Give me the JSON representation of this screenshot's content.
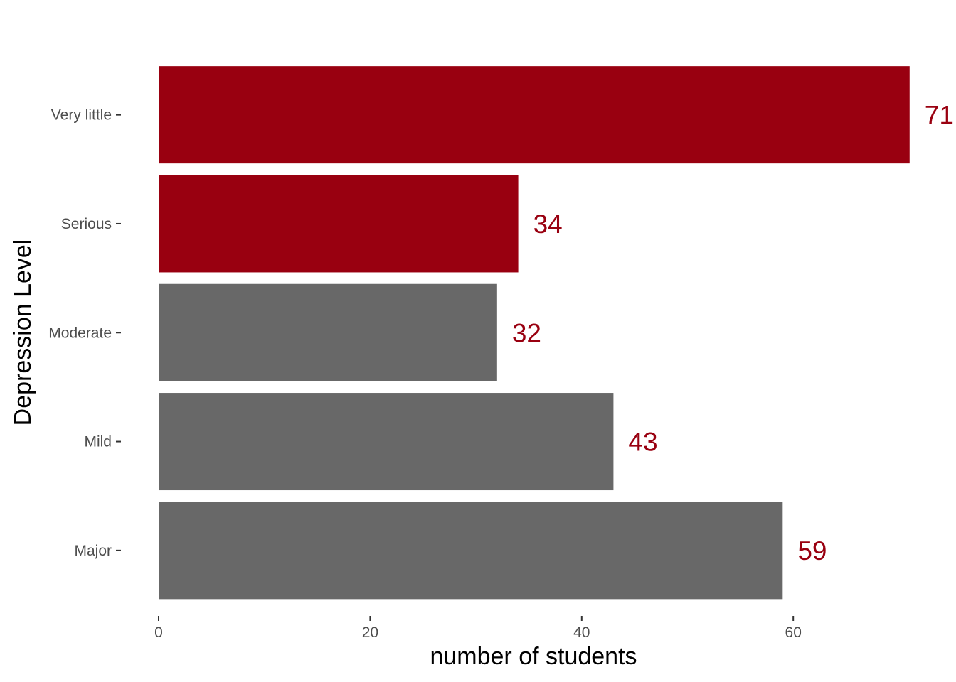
{
  "chart_data": {
    "type": "bar",
    "orientation": "horizontal",
    "categories": [
      "Very little",
      "Serious",
      "Moderate",
      "Mild",
      "Major"
    ],
    "values": [
      71,
      34,
      32,
      43,
      59
    ],
    "highlighted": [
      true,
      true,
      false,
      false,
      false
    ],
    "value_labels": [
      "71",
      "34",
      "32",
      "43",
      "59"
    ],
    "xlabel": "number of students",
    "ylabel": "Depression Level",
    "xlim": [
      0,
      72
    ],
    "x_ticks": [
      0,
      20,
      40,
      60
    ],
    "x_tick_labels": [
      "0",
      "20",
      "40",
      "60"
    ],
    "grid": false,
    "legend": "none",
    "colors": {
      "highlight_bar": "#990010",
      "default_bar": "#686868",
      "data_label": "#990010",
      "tick_label": "#4d4d4d",
      "axis_title": "#000000"
    }
  }
}
